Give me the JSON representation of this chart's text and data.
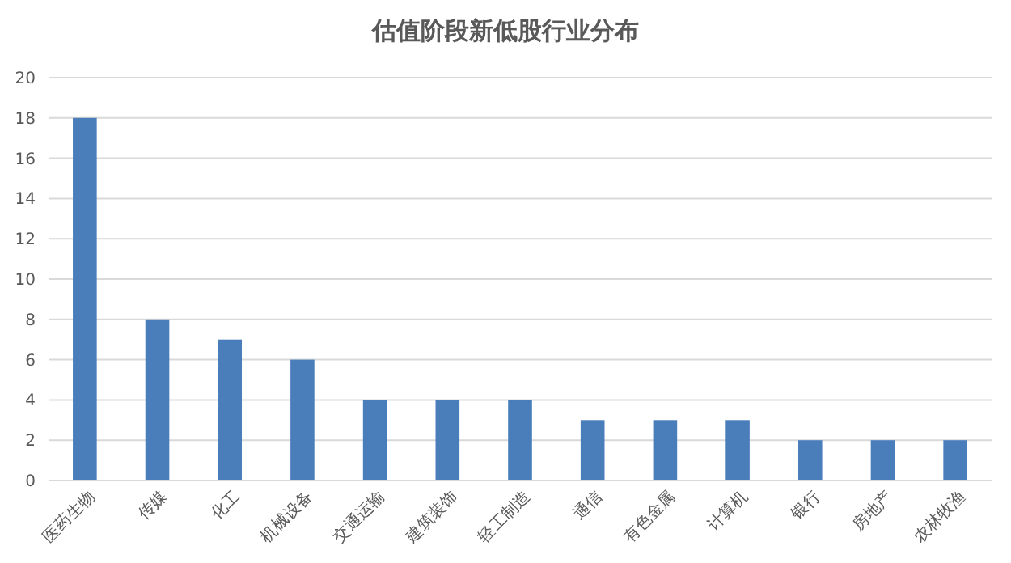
{
  "chart_data": {
    "type": "bar",
    "title": "估值阶段新低股行业分布",
    "categories": [
      "医药生物",
      "传媒",
      "化工",
      "机械设备",
      "交通运输",
      "建筑装饰",
      "轻工制造",
      "通信",
      "有色金属",
      "计算机",
      "银行",
      "房地产",
      "农林牧渔"
    ],
    "values": [
      18,
      8,
      7,
      6,
      4,
      4,
      4,
      3,
      3,
      3,
      2,
      2,
      2
    ],
    "color": "#4a7ebb",
    "ylim": [
      0,
      20
    ],
    "yticks": [
      0,
      2,
      4,
      6,
      8,
      10,
      12,
      14,
      16,
      18,
      20
    ],
    "grid": "y"
  }
}
